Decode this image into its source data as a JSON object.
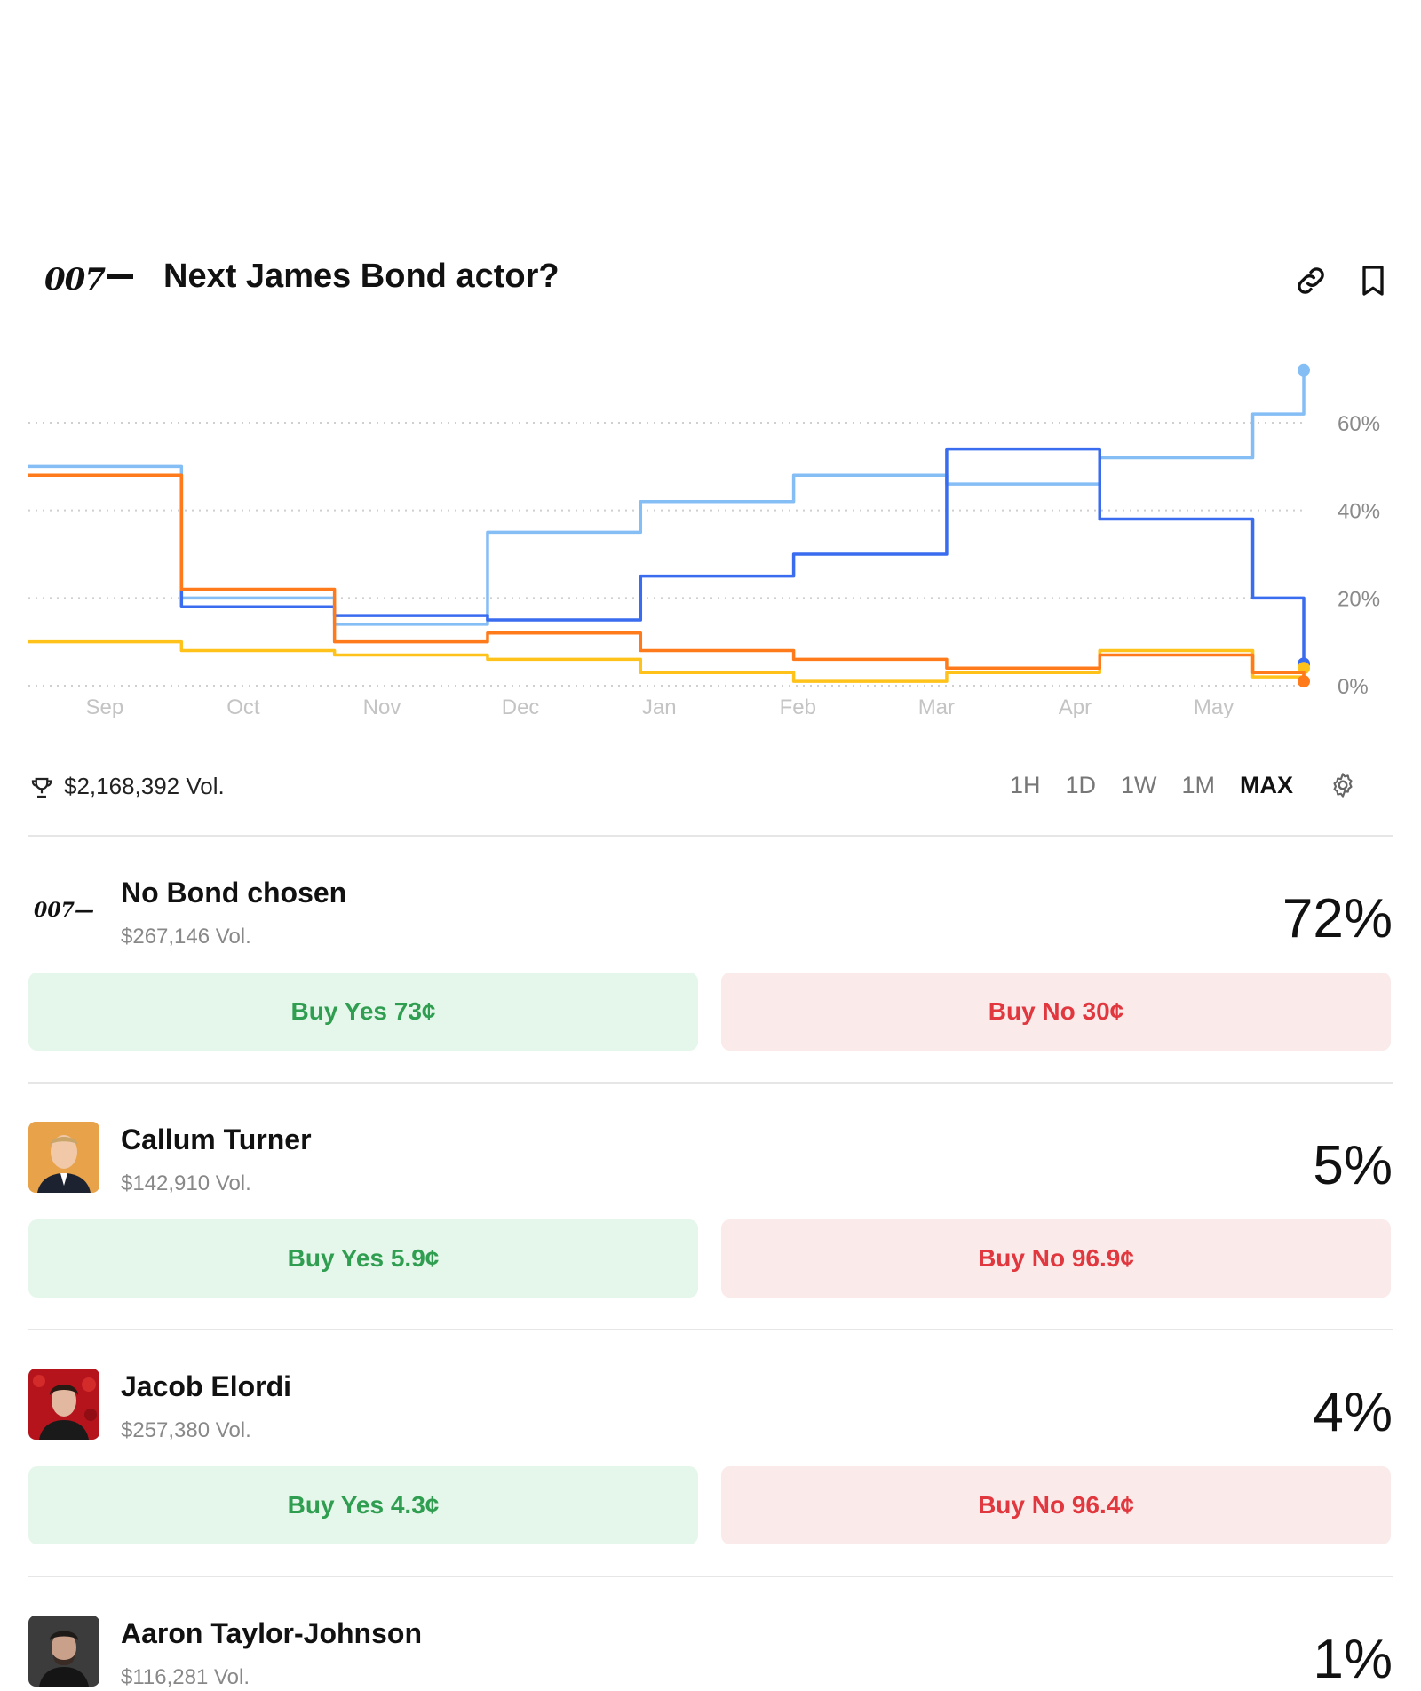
{
  "market": {
    "logo_text": "007",
    "title": "Next James Bond actor?",
    "total_volume": "$2,168,392 Vol."
  },
  "icons": {
    "link": "link-icon",
    "bookmark": "bookmark-icon",
    "trophy": "trophy-icon",
    "settings": "gear-icon"
  },
  "time_ranges": [
    {
      "label": "1H",
      "active": false
    },
    {
      "label": "1D",
      "active": false
    },
    {
      "label": "1W",
      "active": false
    },
    {
      "label": "1M",
      "active": false
    },
    {
      "label": "MAX",
      "active": true
    }
  ],
  "chart_data": {
    "type": "line",
    "x_labels": [
      "Sep",
      "Oct",
      "Nov",
      "Dec",
      "Jan",
      "Feb",
      "Mar",
      "Apr",
      "May"
    ],
    "y_ticks": [
      "0%",
      "20%",
      "40%",
      "60%"
    ],
    "ylim": [
      0,
      75
    ],
    "grid": true,
    "x": [
      0,
      0.12,
      0.24,
      0.36,
      0.48,
      0.6,
      0.72,
      0.84,
      0.96,
      1.0
    ],
    "series": [
      {
        "color": "#85bdf5",
        "values": [
          50,
          20,
          14,
          35,
          42,
          48,
          46,
          52,
          62,
          72
        ]
      },
      {
        "color": "#3a6cf0",
        "values": [
          48,
          18,
          16,
          15,
          25,
          30,
          54,
          38,
          20,
          5
        ]
      },
      {
        "color": "#ffc21a",
        "values": [
          10,
          8,
          7,
          6,
          3,
          1,
          3,
          8,
          2,
          4
        ]
      },
      {
        "color": "#ff7a1a",
        "values": [
          48,
          22,
          10,
          12,
          8,
          6,
          4,
          7,
          3,
          1
        ]
      }
    ]
  },
  "outcomes": [
    {
      "name": "No Bond chosen",
      "volume": "$267,146 Vol.",
      "percent": "72%",
      "yes_label": "Buy Yes 73¢",
      "no_label": "Buy No 30¢",
      "avatar": "logo"
    },
    {
      "name": "Callum Turner",
      "volume": "$142,910 Vol.",
      "percent": "5%",
      "yes_label": "Buy Yes 5.9¢",
      "no_label": "Buy No 96.9¢",
      "avatar": "photo"
    },
    {
      "name": "Jacob Elordi",
      "volume": "$257,380 Vol.",
      "percent": "4%",
      "yes_label": "Buy Yes 4.3¢",
      "no_label": "Buy No 96.4¢",
      "avatar": "photo"
    },
    {
      "name": "Aaron Taylor-Johnson",
      "volume": "$116,281 Vol.",
      "percent": "1%",
      "yes_label": "",
      "no_label": "",
      "avatar": "photo"
    }
  ]
}
